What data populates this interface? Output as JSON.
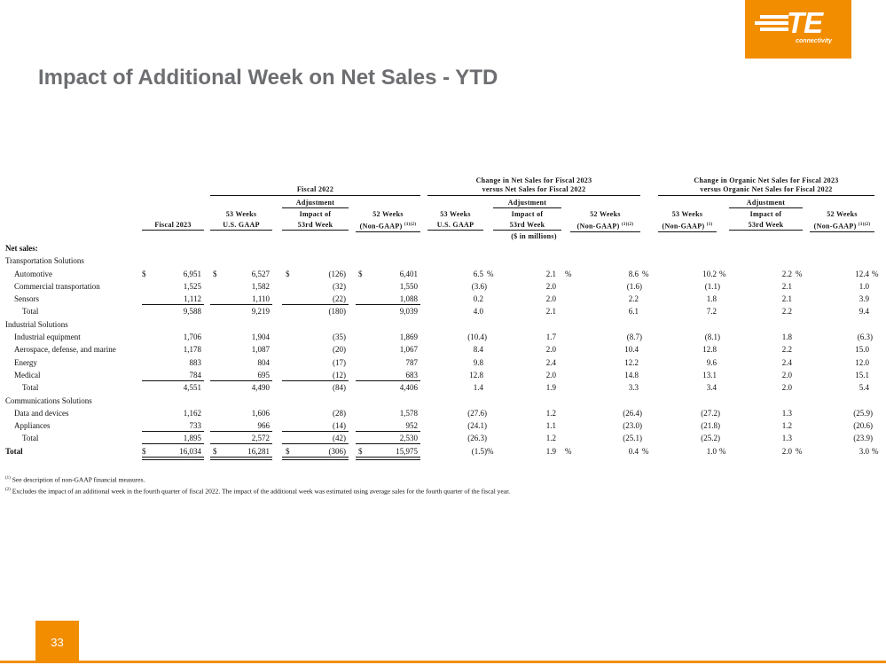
{
  "logo": {
    "brand": "TE",
    "tagline": "connectivity"
  },
  "title": "Impact of Additional Week on Net Sales - YTD",
  "page_number": "33",
  "group_headers": {
    "fiscal2022": "Fiscal 2022",
    "change_net_line1": "Change in Net Sales for Fiscal 2023",
    "change_net_line2": "versus Net Sales for Fiscal 2022",
    "change_org_line1": "Change in Organic Net Sales for Fiscal 2023",
    "change_org_line2": "versus Organic Net Sales for Fiscal 2022",
    "units": "($ in millions)"
  },
  "col_headers": [
    {
      "l0": "",
      "l1": "",
      "l2": "Fiscal 2023"
    },
    {
      "l0": "",
      "l1": "53 Weeks",
      "l2": "U.S. GAAP"
    },
    {
      "l0": "Adjustment",
      "l1": "Impact of",
      "l2": "53rd Week"
    },
    {
      "l0": "",
      "l1": "52 Weeks",
      "l2": "(Non-GAAP)",
      "sup": "(1)(2)"
    },
    {
      "l0": "",
      "l1": "53 Weeks",
      "l2": "U.S. GAAP"
    },
    {
      "l0": "Adjustment",
      "l1": "Impact of",
      "l2": "53rd Week"
    },
    {
      "l0": "",
      "l1": "52 Weeks",
      "l2": "(Non-GAAP)",
      "sup": "(1)(2)"
    },
    {
      "l0": "",
      "l1": "53 Weeks",
      "l2": "(Non-GAAP)",
      "sup": "(1)"
    },
    {
      "l0": "Adjustment",
      "l1": "Impact of",
      "l2": "53rd Week"
    },
    {
      "l0": "",
      "l1": "52 Weeks",
      "l2": "(Non-GAAP)",
      "sup": "(1)(2)"
    }
  ],
  "rows": [
    {
      "label": "Net sales:",
      "type": "heading"
    },
    {
      "label": "Transportation Solutions",
      "type": "section"
    },
    {
      "label": "Automotive",
      "type": "item",
      "dollar": true,
      "pct": true,
      "v": [
        "6,951",
        "6,527",
        "(126)",
        "6,401",
        "6.5",
        "2.1",
        "8.6",
        "10.2",
        "2.2",
        "12.4"
      ]
    },
    {
      "label": "Commercial transportation",
      "type": "item",
      "v": [
        "1,525",
        "1,582",
        "(32)",
        "1,550",
        "(3.6)",
        "2.0",
        "(1.6)",
        "(1.1)",
        "2.1",
        "1.0"
      ]
    },
    {
      "label": "Sensors",
      "type": "item",
      "underline": true,
      "v": [
        "1,112",
        "1,110",
        "(22)",
        "1,088",
        "0.2",
        "2.0",
        "2.2",
        "1.8",
        "2.1",
        "3.9"
      ]
    },
    {
      "label": "Total",
      "type": "total",
      "v": [
        "9,588",
        "9,219",
        "(180)",
        "9,039",
        "4.0",
        "2.1",
        "6.1",
        "7.2",
        "2.2",
        "9.4"
      ]
    },
    {
      "label": "Industrial Solutions",
      "type": "section"
    },
    {
      "label": "Industrial equipment",
      "type": "item",
      "v": [
        "1,706",
        "1,904",
        "(35)",
        "1,869",
        "(10.4)",
        "1.7",
        "(8.7)",
        "(8.1)",
        "1.8",
        "(6.3)"
      ]
    },
    {
      "label": "Aerospace, defense, and marine",
      "type": "item",
      "v": [
        "1,178",
        "1,087",
        "(20)",
        "1,067",
        "8.4",
        "2.0",
        "10.4",
        "12.8",
        "2.2",
        "15.0"
      ]
    },
    {
      "label": "Energy",
      "type": "item",
      "v": [
        "883",
        "804",
        "(17)",
        "787",
        "9.8",
        "2.4",
        "12.2",
        "9.6",
        "2.4",
        "12.0"
      ]
    },
    {
      "label": "Medical",
      "type": "item",
      "underline": true,
      "v": [
        "784",
        "695",
        "(12)",
        "683",
        "12.8",
        "2.0",
        "14.8",
        "13.1",
        "2.0",
        "15.1"
      ]
    },
    {
      "label": "Total",
      "type": "total",
      "v": [
        "4,551",
        "4,490",
        "(84)",
        "4,406",
        "1.4",
        "1.9",
        "3.3",
        "3.4",
        "2.0",
        "5.4"
      ]
    },
    {
      "label": "Communications Solutions",
      "type": "section"
    },
    {
      "label": "Data and devices",
      "type": "item",
      "v": [
        "1,162",
        "1,606",
        "(28)",
        "1,578",
        "(27.6)",
        "1.2",
        "(26.4)",
        "(27.2)",
        "1.3",
        "(25.9)"
      ]
    },
    {
      "label": "Appliances",
      "type": "item",
      "underline": true,
      "v": [
        "733",
        "966",
        "(14)",
        "952",
        "(24.1)",
        "1.1",
        "(23.0)",
        "(21.8)",
        "1.2",
        "(20.6)"
      ]
    },
    {
      "label": "Total",
      "type": "total",
      "underline": true,
      "v": [
        "1,895",
        "2,572",
        "(42)",
        "2,530",
        "(26.3)",
        "1.2",
        "(25.1)",
        "(25.2)",
        "1.3",
        "(23.9)"
      ]
    },
    {
      "label": "Total",
      "type": "grand",
      "dollar": true,
      "pct": true,
      "v": [
        "16,034",
        "16,281",
        "(306)",
        "15,975",
        "(1.5)",
        "1.9",
        "0.4",
        "1.0",
        "2.0",
        "3.0"
      ]
    }
  ],
  "symbols": {
    "dollar": "$",
    "percent": "%"
  },
  "footnotes": [
    {
      "marker": "(1)",
      "text": "See description of non-GAAP financial measures."
    },
    {
      "marker": "(2)",
      "text": "Excludes the impact of an additional week in the fourth quarter of fiscal 2022. The impact of the additional week was estimated using average sales for the fourth quarter of the fiscal year."
    }
  ]
}
